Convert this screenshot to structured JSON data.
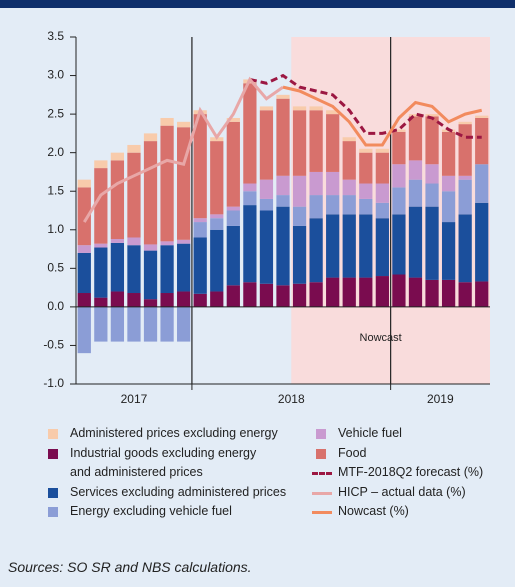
{
  "chart_data": {
    "type": "bar",
    "categories": [
      null,
      null,
      null,
      null,
      null,
      null,
      null,
      null,
      null,
      null,
      null,
      null,
      null,
      null,
      null,
      null,
      null,
      null,
      null,
      null,
      null,
      null,
      null,
      null,
      null
    ],
    "x_groups": [
      {
        "label": "2017",
        "start": 0,
        "end": 6
      },
      {
        "label": "2018",
        "start": 7,
        "end": 18
      },
      {
        "label": "2019",
        "start": 19,
        "end": 24
      }
    ],
    "dividers": [
      7,
      19
    ],
    "annotation": {
      "text": "Nowcast",
      "start": 13
    },
    "ylim": [
      -1.0,
      3.5
    ],
    "yticks": [
      {
        "value": 3.5,
        "label": "3.5"
      },
      {
        "value": 3,
        "label": "3.0"
      },
      2.5,
      {
        "value": 2,
        "label": "2.0"
      },
      1.5,
      {
        "value": 1,
        "label": "1.0"
      },
      0.5,
      {
        "value": 0,
        "label": "0.0"
      },
      -0.5,
      {
        "value": -1,
        "label": "-1.0"
      }
    ],
    "series": [
      {
        "name": "Administered prices excluding energy",
        "color": "#f8cbab",
        "values": [
          0.1,
          0.1,
          0.1,
          0.1,
          0.1,
          0.1,
          0.07,
          0.05,
          0.05,
          0.05,
          0.05,
          0.05,
          0.05,
          0.05,
          0.05,
          0.05,
          0.05,
          0.05,
          0.05,
          0.03,
          0.03,
          0.03,
          0.03,
          0.03,
          0.03
        ]
      },
      {
        "name": "Industrial goods excluding energy\nand administered prices",
        "color": "#7a0c4f",
        "values": [
          0.18,
          0.12,
          0.2,
          0.18,
          0.1,
          0.18,
          0.2,
          0.17,
          0.2,
          0.28,
          0.32,
          0.3,
          0.28,
          0.3,
          0.32,
          0.38,
          0.38,
          0.38,
          0.4,
          0.42,
          0.38,
          0.35,
          0.35,
          0.32,
          0.33
        ]
      },
      {
        "name": "Services excluding administered prices",
        "color": "#1b4f9c",
        "values": [
          0.52,
          0.65,
          0.63,
          0.62,
          0.63,
          0.62,
          0.62,
          0.73,
          0.8,
          0.77,
          1.0,
          0.95,
          1.02,
          0.75,
          0.83,
          0.82,
          0.82,
          0.82,
          0.75,
          0.78,
          0.92,
          0.95,
          0.75,
          0.88,
          1.02
        ]
      },
      {
        "name": "Energy excluding vehicle fuel",
        "color": "#8b9dd6",
        "values": [
          -0.6,
          -0.45,
          -0.45,
          -0.45,
          -0.45,
          -0.45,
          -0.45,
          0.2,
          0.15,
          0.2,
          0.18,
          0.15,
          0.15,
          0.25,
          0.3,
          0.25,
          0.25,
          0.2,
          0.2,
          0.35,
          0.35,
          0.3,
          0.4,
          0.45,
          0.5
        ]
      },
      {
        "name": "Vehicle fuel",
        "color": "#c99ad0",
        "values": [
          0.1,
          0.05,
          0.05,
          0.1,
          0.08,
          0.05,
          0.05,
          0.05,
          0.05,
          0.05,
          0.1,
          0.25,
          0.25,
          0.4,
          0.3,
          0.3,
          0.2,
          0.2,
          0.25,
          0.3,
          0.25,
          0.25,
          0.2,
          0.05,
          0.0
        ]
      },
      {
        "name": "Food",
        "color": "#d8716c",
        "values": [
          0.75,
          0.98,
          1.02,
          1.1,
          1.34,
          1.5,
          1.46,
          1.35,
          0.95,
          1.1,
          1.3,
          0.9,
          1.0,
          0.85,
          0.8,
          0.75,
          0.5,
          0.4,
          0.4,
          0.42,
          0.57,
          0.62,
          0.57,
          0.67,
          0.6
        ]
      },
      {
        "name": "MTF-2018Q2 forecast (%)",
        "type": "line",
        "dashed": true,
        "color": "#9c1742",
        "values": [
          null,
          null,
          null,
          null,
          null,
          null,
          null,
          null,
          null,
          null,
          2.95,
          2.9,
          3.0,
          2.85,
          2.8,
          2.75,
          2.55,
          2.25,
          2.25,
          2.3,
          2.5,
          2.45,
          2.3,
          2.2,
          2.2
        ]
      },
      {
        "name": "HICP – actual data (%)",
        "type": "line",
        "color": "#e8a7a7",
        "values": [
          1.1,
          1.45,
          1.6,
          1.7,
          1.8,
          1.9,
          1.85,
          2.55,
          2.2,
          2.5,
          2.95,
          2.7,
          2.85,
          null,
          null,
          null,
          null,
          null,
          null,
          null,
          null,
          null,
          null,
          null,
          null
        ]
      },
      {
        "name": "Nowcast (%)",
        "type": "line",
        "color": "#f28b5e",
        "values": [
          null,
          null,
          null,
          null,
          null,
          null,
          null,
          null,
          null,
          null,
          null,
          null,
          2.85,
          2.8,
          2.7,
          2.6,
          2.4,
          2.1,
          2.1,
          2.45,
          2.65,
          2.6,
          2.4,
          2.5,
          2.55
        ]
      }
    ],
    "source": "Sources: SO SR and NBS calculations."
  }
}
